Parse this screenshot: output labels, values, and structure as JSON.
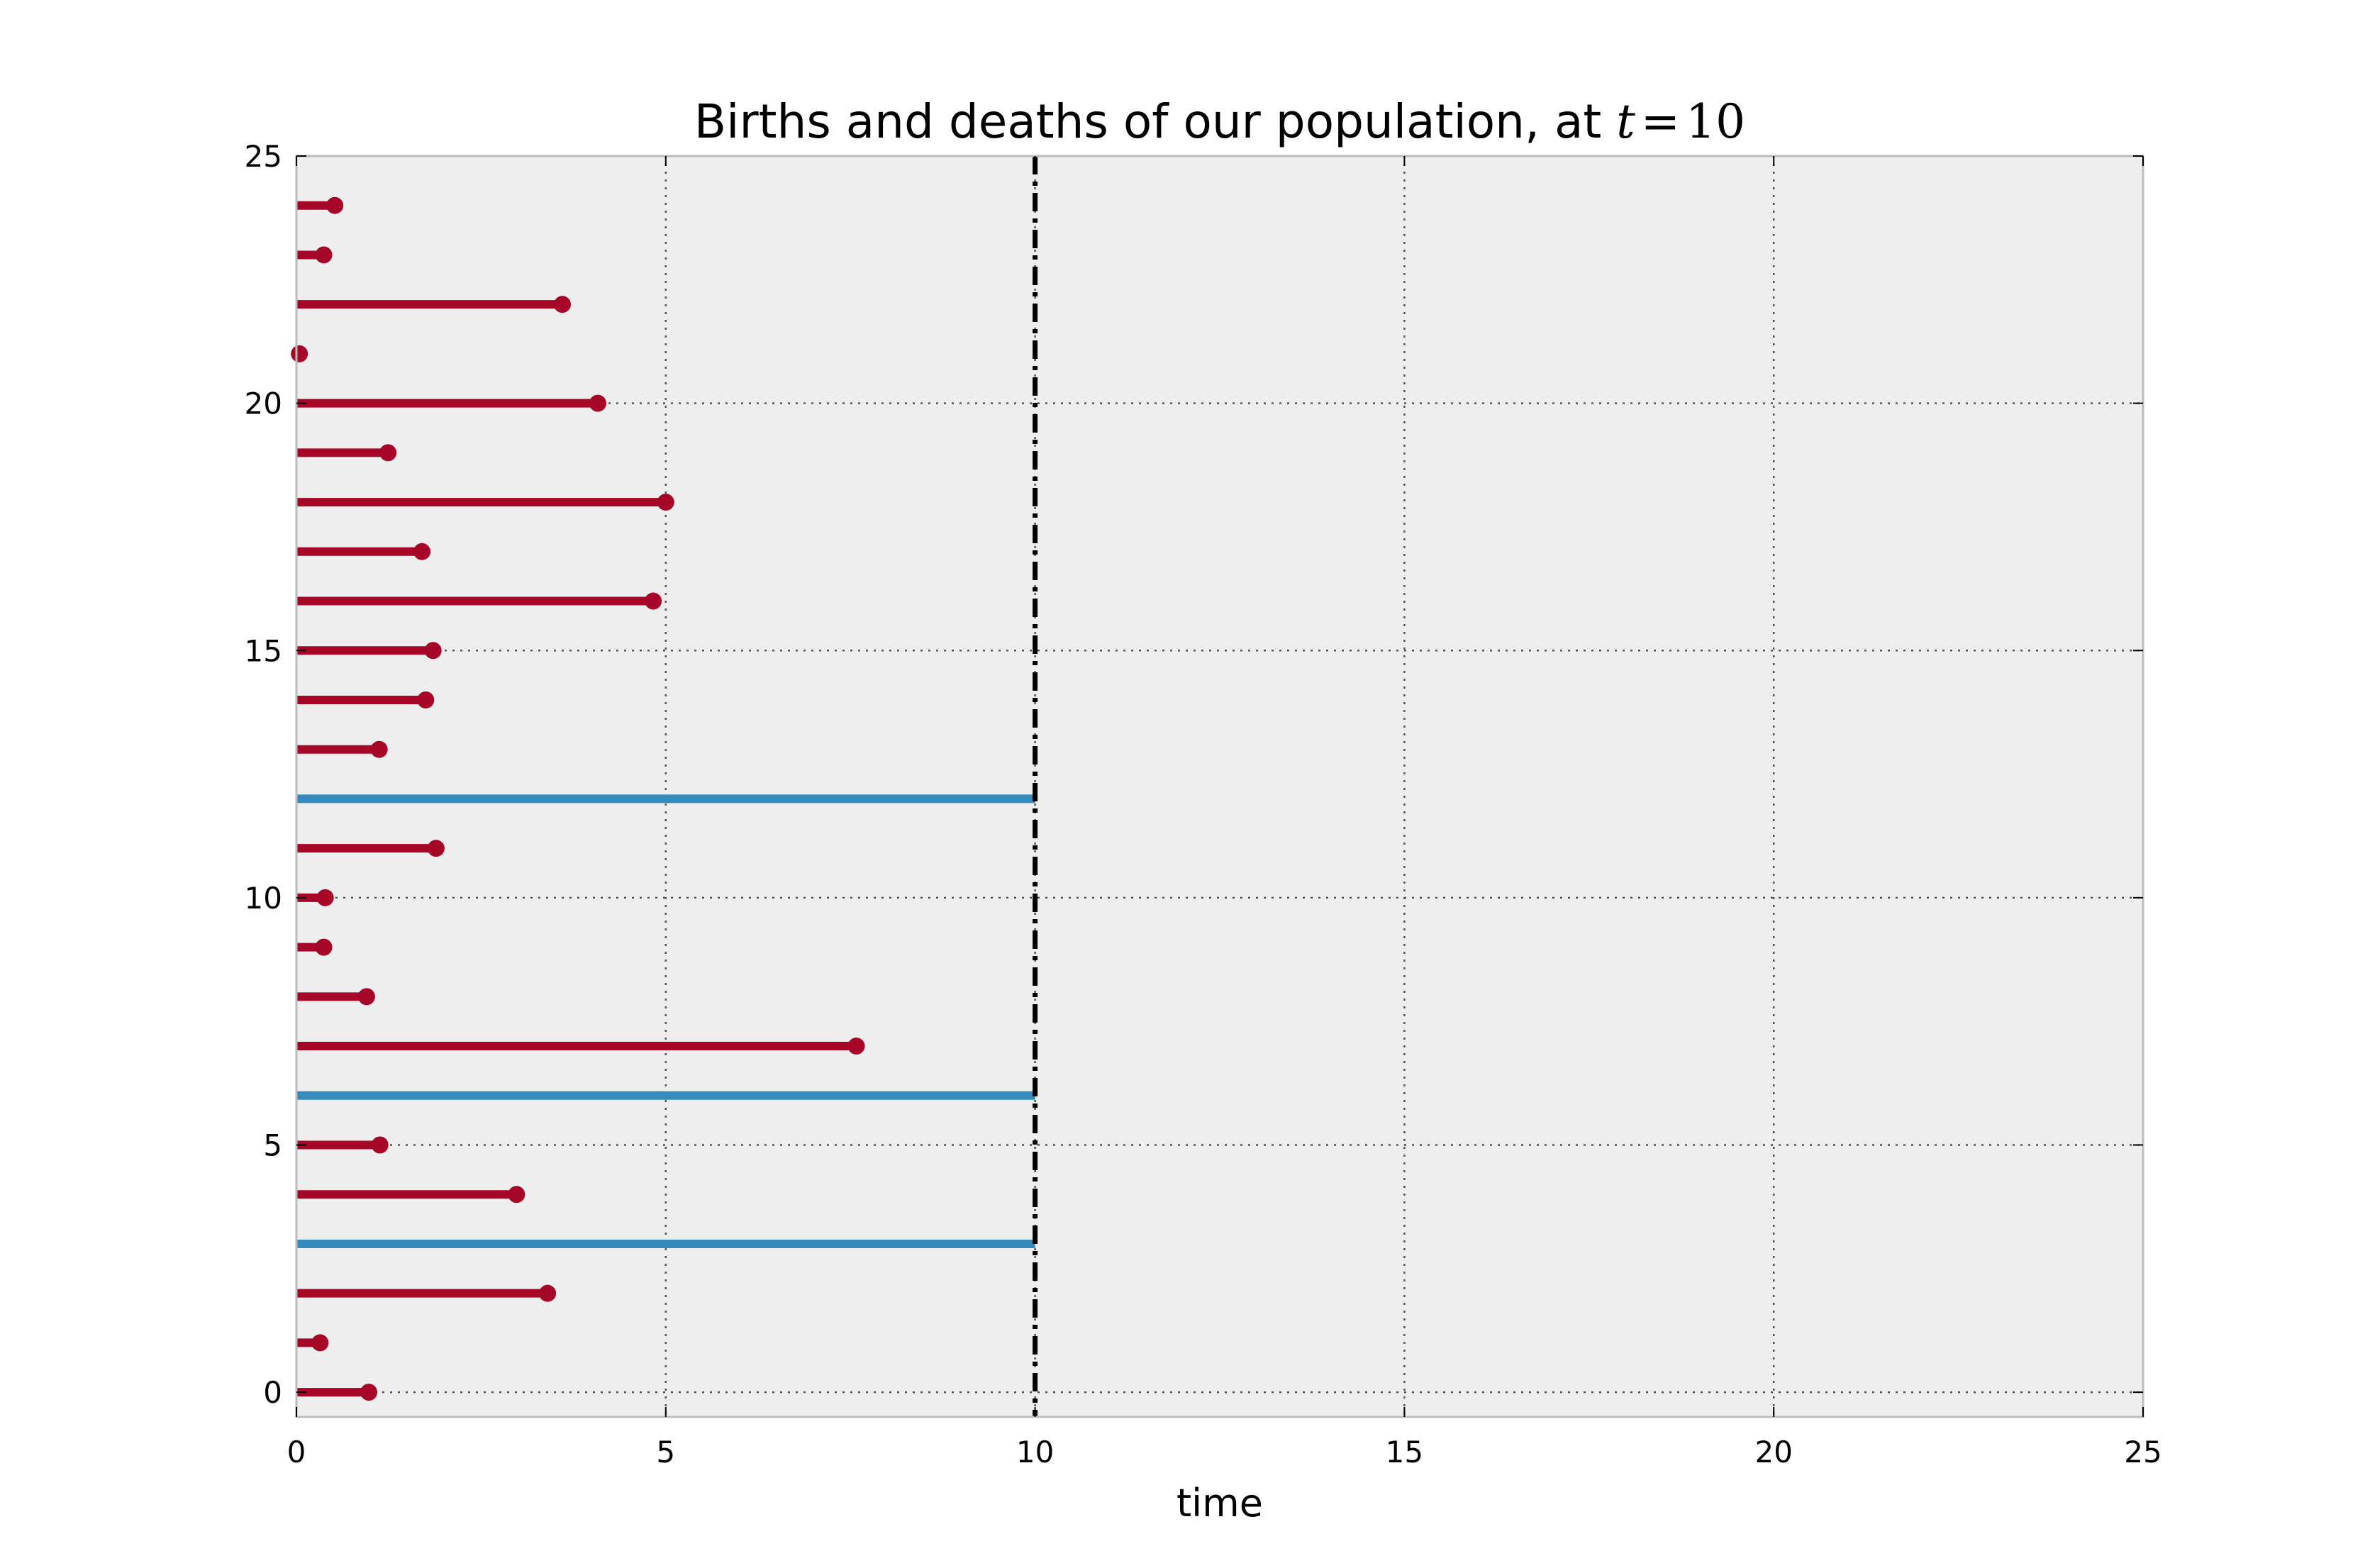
{
  "chart_data": {
    "type": "line",
    "title": "Births and deaths of our population, at ",
    "title_math": {
      "variable": "t",
      "operator": "=",
      "value": "10"
    },
    "xlabel": "time",
    "ylabel": "",
    "xlim": [
      0,
      25
    ],
    "ylim": [
      -0.5,
      25
    ],
    "xticks": [
      "0",
      "5",
      "10",
      "15",
      "20",
      "25"
    ],
    "yticks": [
      "0",
      "5",
      "10",
      "15",
      "20",
      "25"
    ],
    "grid": true,
    "observation_time": 10,
    "colors": {
      "observed": "#a60628",
      "censored": "#348abd",
      "reference_line": "#000000",
      "plot_background": "#eeeeee",
      "grid": "#555555"
    },
    "lifetimes": [
      {
        "subject": 0,
        "start": 0,
        "end": 0.98,
        "observed": true
      },
      {
        "subject": 1,
        "start": 0,
        "end": 0.32,
        "observed": true
      },
      {
        "subject": 2,
        "start": 0,
        "end": 3.4,
        "observed": true
      },
      {
        "subject": 3,
        "start": 0,
        "end": 10,
        "observed": false
      },
      {
        "subject": 4,
        "start": 0,
        "end": 2.98,
        "observed": true
      },
      {
        "subject": 5,
        "start": 0,
        "end": 1.13,
        "observed": true
      },
      {
        "subject": 6,
        "start": 0,
        "end": 10,
        "observed": false
      },
      {
        "subject": 7,
        "start": 0,
        "end": 7.58,
        "observed": true
      },
      {
        "subject": 8,
        "start": 0,
        "end": 0.95,
        "observed": true
      },
      {
        "subject": 9,
        "start": 0,
        "end": 0.37,
        "observed": true
      },
      {
        "subject": 10,
        "start": 0,
        "end": 0.39,
        "observed": true
      },
      {
        "subject": 11,
        "start": 0,
        "end": 1.89,
        "observed": true
      },
      {
        "subject": 12,
        "start": 0,
        "end": 10,
        "observed": false
      },
      {
        "subject": 13,
        "start": 0,
        "end": 1.12,
        "observed": true
      },
      {
        "subject": 14,
        "start": 0,
        "end": 1.75,
        "observed": true
      },
      {
        "subject": 15,
        "start": 0,
        "end": 1.85,
        "observed": true
      },
      {
        "subject": 16,
        "start": 0,
        "end": 4.83,
        "observed": true
      },
      {
        "subject": 17,
        "start": 0,
        "end": 1.7,
        "observed": true
      },
      {
        "subject": 18,
        "start": 0,
        "end": 5.0,
        "observed": true
      },
      {
        "subject": 19,
        "start": 0,
        "end": 1.24,
        "observed": true
      },
      {
        "subject": 20,
        "start": 0,
        "end": 4.08,
        "observed": true
      },
      {
        "subject": 21,
        "start": 0,
        "end": 0.04,
        "observed": true
      },
      {
        "subject": 22,
        "start": 0,
        "end": 3.6,
        "observed": true
      },
      {
        "subject": 23,
        "start": 0,
        "end": 0.37,
        "observed": true
      },
      {
        "subject": 24,
        "start": 0,
        "end": 0.52,
        "observed": true
      }
    ]
  }
}
